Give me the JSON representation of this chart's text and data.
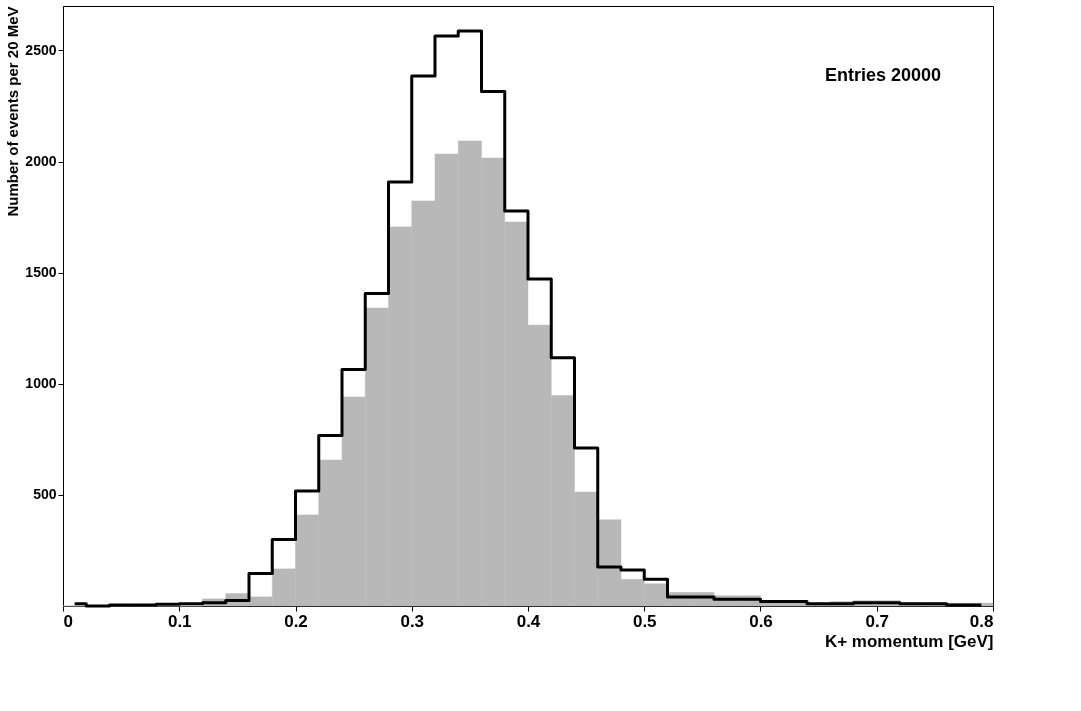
{
  "chart_data": {
    "type": "histogram",
    "xlabel": "K+ momentum [GeV]",
    "ylabel": "Number of events per 20 MeV",
    "bins": [
      0,
      0.02,
      0.04,
      0.06,
      0.08,
      0.1,
      0.12,
      0.14,
      0.16,
      0.18,
      0.2,
      0.22,
      0.24,
      0.26,
      0.28,
      0.3,
      0.32,
      0.34,
      0.36,
      0.38,
      0.4,
      0.42,
      0.44,
      0.46,
      0.48,
      0.5,
      0.52,
      0.54,
      0.56,
      0.58,
      0.6,
      0.62,
      0.64,
      0.66,
      0.68,
      0.7,
      0.72,
      0.74,
      0.76,
      0.78,
      0.8
    ],
    "series": [
      {
        "type": "histogram",
        "color": "#b8b8b8",
        "values": [
          0,
          0,
          0,
          0,
          0,
          0,
          32,
          56,
          41,
          167,
          410,
          657,
          941,
          1341,
          1706,
          1823,
          2034,
          2093,
          2016,
          1728,
          1264,
          947,
          513,
          388,
          120,
          100,
          61,
          61,
          46,
          46,
          24,
          24,
          13,
          20,
          24,
          24,
          13,
          13,
          13,
          13
        ]
      },
      {
        "type": "step",
        "color": "#000000",
        "x": [
          0.01,
          0.03,
          0.05,
          0.07,
          0.09,
          0.11,
          0.13,
          0.15,
          0.17,
          0.19,
          0.21,
          0.23,
          0.25,
          0.27,
          0.29,
          0.31,
          0.33,
          0.35,
          0.37,
          0.39,
          0.41,
          0.43,
          0.45,
          0.47,
          0.49,
          0.51,
          0.53,
          0.55,
          0.57,
          0.59,
          0.61,
          0.63,
          0.65,
          0.67,
          0.69,
          0.71,
          0.73,
          0.75,
          0.77,
          0.79
        ],
        "values": [
          10,
          0,
          5,
          5,
          8,
          10,
          15,
          25,
          146,
          299,
          518,
          767,
          1064,
          1406,
          1908,
          2385,
          2565,
          2588,
          2315,
          1778,
          1472,
          1117,
          711,
          175,
          162,
          120,
          40,
          40,
          30,
          30,
          20,
          20,
          10,
          10,
          15,
          15,
          10,
          10,
          5,
          5
        ]
      }
    ],
    "xlim": [
      0,
      0.8
    ],
    "ylim": [
      0,
      2700
    ],
    "xticks": [
      0,
      0.1,
      0.2,
      0.3,
      0.4,
      0.5,
      0.6,
      0.7,
      0.8
    ],
    "yticks": [
      500,
      1000,
      1500,
      2000,
      2500
    ],
    "annotations": [
      "Entries  20000"
    ]
  }
}
